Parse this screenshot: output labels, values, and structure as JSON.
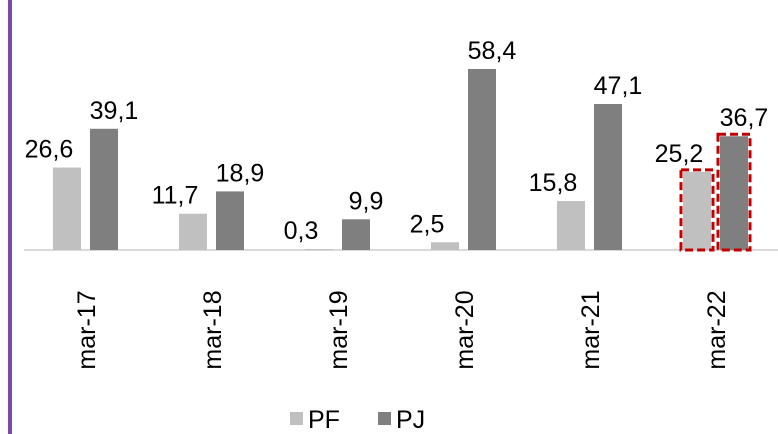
{
  "chart_data": {
    "type": "bar",
    "categories": [
      "mar-17",
      "mar-18",
      "mar-19",
      "mar-20",
      "mar-21",
      "mar-22"
    ],
    "series": [
      {
        "name": "PF",
        "values": [
          26.6,
          11.7,
          0.3,
          2.5,
          15.8,
          25.2
        ],
        "labels": [
          "26,6",
          "11,7",
          "0,3",
          "2,5",
          "15,8",
          "25,2"
        ],
        "color": "#c0c0c0"
      },
      {
        "name": "PJ",
        "values": [
          39.1,
          18.9,
          9.9,
          58.4,
          47.1,
          36.7
        ],
        "labels": [
          "39,1",
          "18,9",
          "9,9",
          "58,4",
          "47,1",
          "36,7"
        ],
        "color": "#7f7f7f"
      }
    ],
    "highlight_category": "mar-22",
    "highlight_color": "#c00000",
    "legend_position": "bottom",
    "ylim": [
      0,
      60
    ],
    "grid": false
  }
}
